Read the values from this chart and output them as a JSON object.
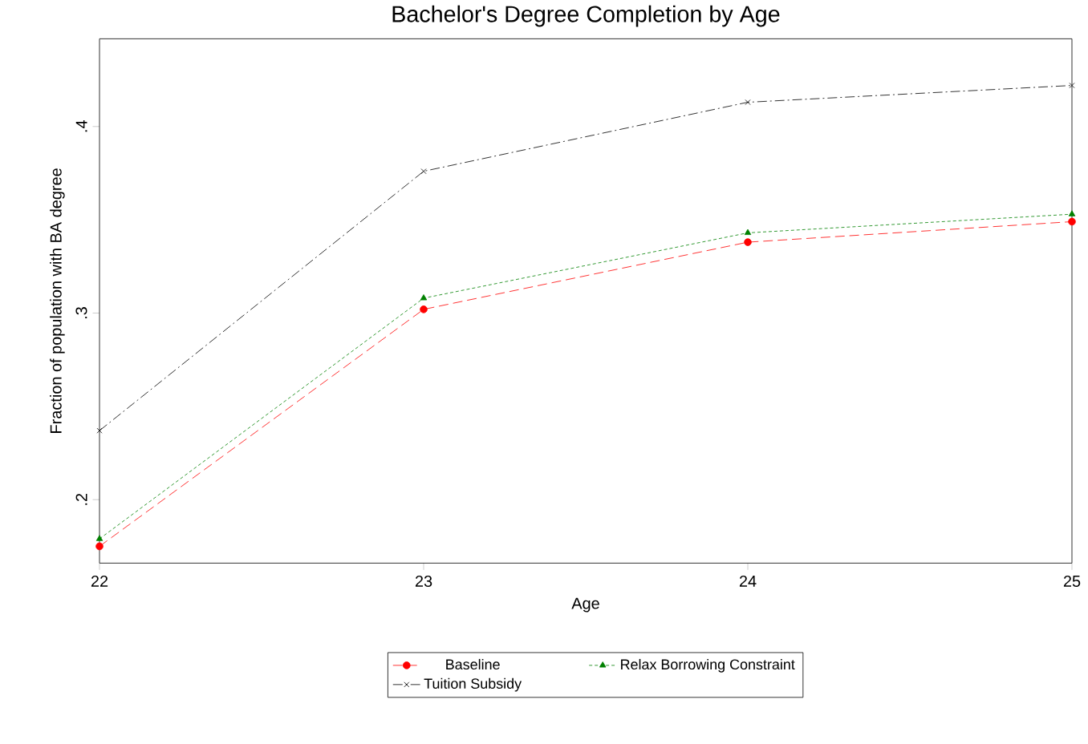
{
  "chart_data": {
    "type": "line",
    "title": "Bachelor's Degree Completion by Age",
    "xlabel": "Age",
    "ylabel": "Fraction of population with BA degree",
    "x": [
      22,
      23,
      24,
      25
    ],
    "xlim": [
      22,
      25
    ],
    "xticks": [
      22,
      23,
      24,
      25
    ],
    "ylim": [
      0.166,
      0.447
    ],
    "yticks": [
      {
        "value": 0.2,
        "label": ".2"
      },
      {
        "value": 0.3,
        "label": ".3"
      },
      {
        "value": 0.4,
        "label": ".4"
      }
    ],
    "legend": "bottom",
    "grid": false,
    "series": [
      {
        "name": "Baseline",
        "color": "#ff0000",
        "values": [
          0.175,
          0.302,
          0.338,
          0.349
        ],
        "marker": "circle",
        "line_style": "dashed"
      },
      {
        "name": "Relax Borrowing Constraint",
        "color": "#008000",
        "values": [
          0.179,
          0.308,
          0.343,
          0.353
        ],
        "marker": "triangle",
        "line_style": "dotted"
      },
      {
        "name": "Tuition Subsidy",
        "color": "#000000",
        "values": [
          0.237,
          0.376,
          0.413,
          0.422
        ],
        "marker": "cross",
        "line_style": "dashdot"
      }
    ]
  }
}
